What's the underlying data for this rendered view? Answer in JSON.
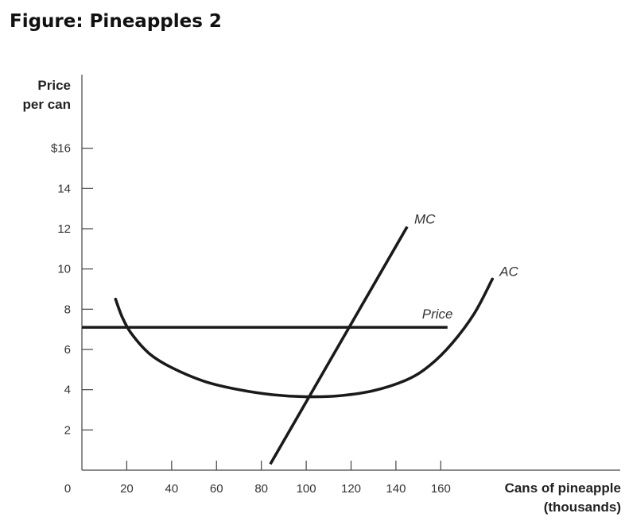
{
  "figure_title": "Figure: Pineapples 2",
  "chart_data": {
    "type": "line",
    "ylabel": [
      "Price",
      "per can"
    ],
    "xlabel": [
      "Cans of pineapple",
      "(thousands)"
    ],
    "origin_label": "0",
    "x_ticks": [
      20,
      40,
      60,
      80,
      100,
      120,
      140,
      160
    ],
    "x_tick_labels": [
      "20",
      "40",
      "60",
      "80",
      "100",
      "120",
      "140",
      "160"
    ],
    "y_ticks": [
      2,
      4,
      6,
      8,
      10,
      12,
      14,
      16
    ],
    "y_tick_labels": [
      "2",
      "4",
      "6",
      "8",
      "10",
      "12",
      "14",
      "$16"
    ],
    "xlim": [
      0,
      240
    ],
    "ylim": [
      0,
      18
    ],
    "grid": false,
    "series": [
      {
        "name": "Price",
        "style": "horizontal",
        "x": [
          0,
          163
        ],
        "y": [
          7.1,
          7.1
        ]
      },
      {
        "name": "MC",
        "x": [
          84,
          145
        ],
        "y": [
          0.3,
          12.1
        ]
      },
      {
        "name": "AC",
        "x": [
          15,
          18,
          22,
          30,
          40,
          55,
          70,
          85,
          100,
          115,
          130,
          145,
          155,
          165,
          175,
          183
        ],
        "y": [
          8.5,
          7.6,
          6.8,
          5.8,
          5.1,
          4.4,
          4.0,
          3.75,
          3.65,
          3.7,
          3.95,
          4.5,
          5.2,
          6.3,
          7.8,
          9.5
        ]
      }
    ],
    "colors": {
      "lines": "#1a1a1a",
      "axis": "#444444"
    }
  }
}
